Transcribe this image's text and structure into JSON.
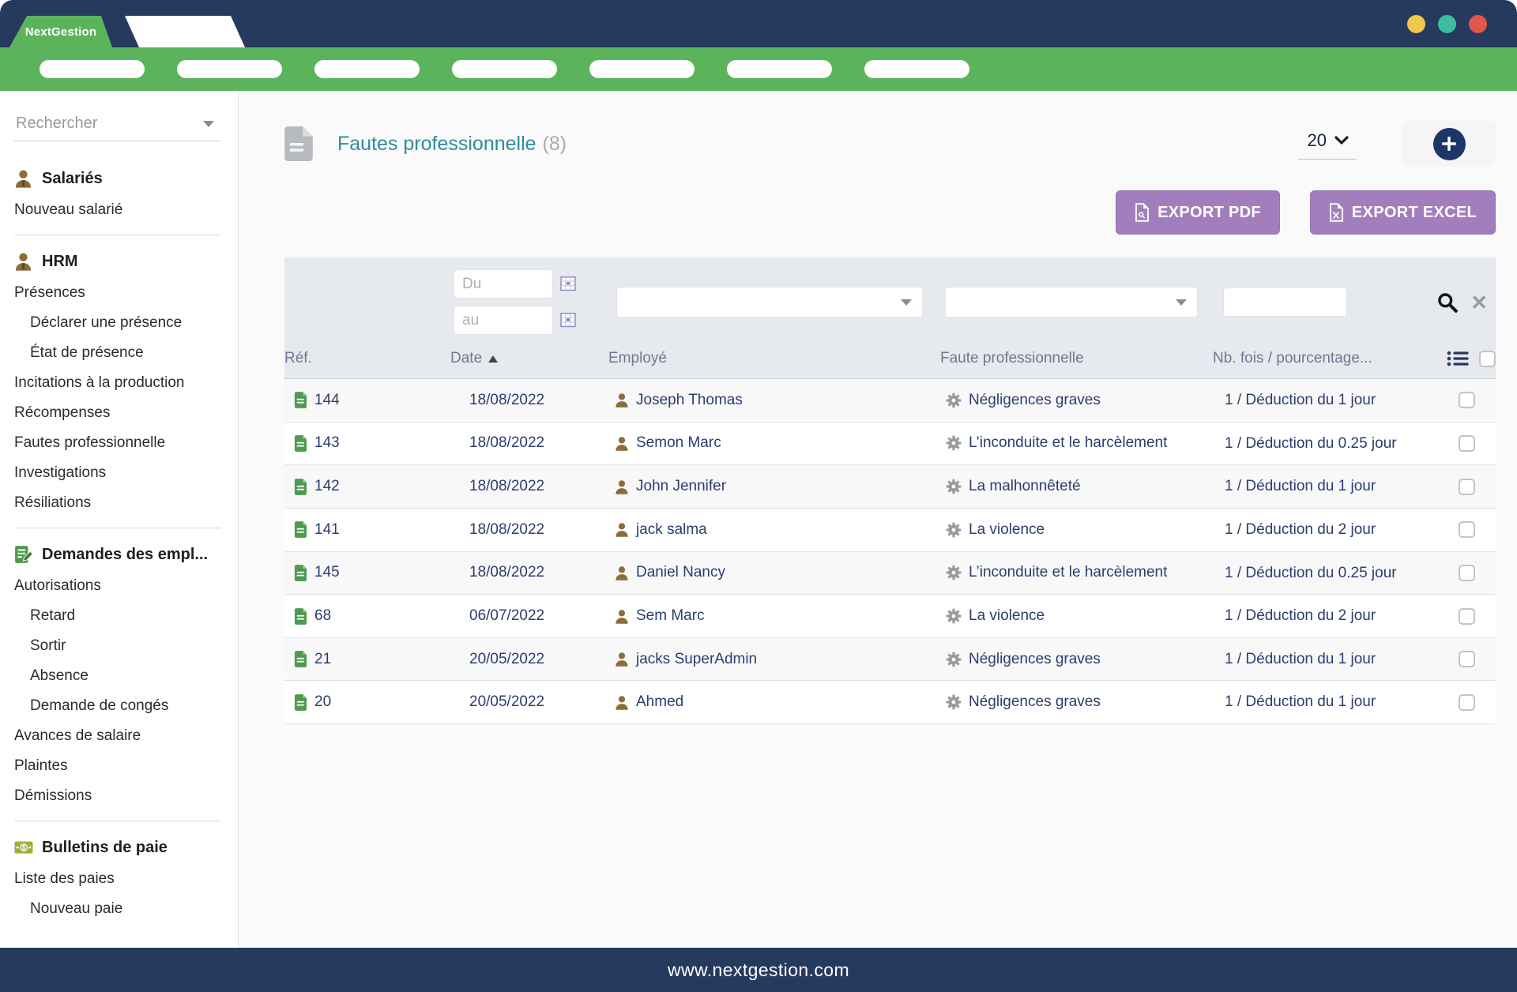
{
  "window": {
    "brand": "NextGestion",
    "footer_url": "www.nextgestion.com"
  },
  "colors": {
    "navy": "#253A5E",
    "green": "#5BB45C",
    "purple": "#A27FBC",
    "teal_title": "#2E8C9C",
    "link_navy": "#2C3D6E",
    "dot_yellow": "#EFC94C",
    "dot_teal": "#3EBD9E",
    "dot_red": "#E2574C"
  },
  "navbar": {
    "pill_count": 7
  },
  "sidebar": {
    "search_placeholder": "Rechercher",
    "items": [
      {
        "type": "header",
        "icon": "person",
        "label": "Salariés"
      },
      {
        "type": "item",
        "label": "Nouveau salarié",
        "indent": 0
      },
      {
        "type": "divider"
      },
      {
        "type": "header",
        "icon": "person",
        "label": "HRM"
      },
      {
        "type": "item",
        "label": "Présences",
        "indent": 0
      },
      {
        "type": "item",
        "label": "Déclarer une présence",
        "indent": 1
      },
      {
        "type": "item",
        "label": "État de présence",
        "indent": 1
      },
      {
        "type": "item",
        "label": "Incitations à la production",
        "indent": 0
      },
      {
        "type": "item",
        "label": "Récompenses",
        "indent": 0
      },
      {
        "type": "item",
        "label": "Fautes professionnelle",
        "indent": 0
      },
      {
        "type": "item",
        "label": "Investigations",
        "indent": 0
      },
      {
        "type": "item",
        "label": "Résiliations",
        "indent": 0
      },
      {
        "type": "divider"
      },
      {
        "type": "header",
        "icon": "doc-pencil",
        "label": "Demandes des empl..."
      },
      {
        "type": "item",
        "label": "Autorisations",
        "indent": 0
      },
      {
        "type": "item",
        "label": "Retard",
        "indent": 1
      },
      {
        "type": "item",
        "label": "Sortir",
        "indent": 1
      },
      {
        "type": "item",
        "label": "Absence",
        "indent": 1
      },
      {
        "type": "item",
        "label": "Demande de congés",
        "indent": 1
      },
      {
        "type": "item",
        "label": "Avances de salaire",
        "indent": 0
      },
      {
        "type": "item",
        "label": "Plaintes",
        "indent": 0
      },
      {
        "type": "item",
        "label": "Démissions",
        "indent": 0
      },
      {
        "type": "divider"
      },
      {
        "type": "header",
        "icon": "banknote",
        "label": "Bulletins de paie"
      },
      {
        "type": "item",
        "label": "Liste des paies",
        "indent": 0
      },
      {
        "type": "item",
        "label": "Nouveau paie",
        "indent": 1
      }
    ]
  },
  "main": {
    "title": "Fautes professionnelle",
    "count": "(8)",
    "page_size": "20",
    "export_pdf_label": "EXPORT PDF",
    "export_excel_label": "EXPORT EXCEL",
    "filters": {
      "du": "Du",
      "au": "au"
    },
    "table": {
      "headers": {
        "ref": "Réf.",
        "date": "Date",
        "employee": "Employé",
        "fault": "Faute professionnelle",
        "times": "Nb. fois / pourcentage..."
      },
      "sort_column": "date",
      "sort_direction": "asc",
      "rows": [
        {
          "ref": "144",
          "date": "18/08/2022",
          "employee": "Joseph Thomas",
          "fault": "Négligences graves",
          "times": "1 / Déduction du 1 jour"
        },
        {
          "ref": "143",
          "date": "18/08/2022",
          "employee": "Semon Marc",
          "fault": "L’inconduite et le harcèlement",
          "times": "1 / Déduction du 0.25 jour"
        },
        {
          "ref": "142",
          "date": "18/08/2022",
          "employee": "John Jennifer",
          "fault": "La malhonnêteté",
          "times": "1 / Déduction du 1 jour"
        },
        {
          "ref": "141",
          "date": "18/08/2022",
          "employee": "jack salma",
          "fault": "La violence",
          "times": "1 / Déduction du 2 jour"
        },
        {
          "ref": "145",
          "date": "18/08/2022",
          "employee": "Daniel Nancy",
          "fault": "L’inconduite et le harcèlement",
          "times": "1 / Déduction du 0.25 jour"
        },
        {
          "ref": "68",
          "date": "06/07/2022",
          "employee": "Sem Marc",
          "fault": "La violence",
          "times": "1 / Déduction du 2 jour"
        },
        {
          "ref": "21",
          "date": "20/05/2022",
          "employee": "jacks SuperAdmin",
          "fault": "Négligences graves",
          "times": "1 / Déduction du 1 jour"
        },
        {
          "ref": "20",
          "date": "20/05/2022",
          "employee": "Ahmed",
          "fault": "Négligences graves",
          "times": "1 / Déduction du 1 jour"
        }
      ]
    }
  }
}
